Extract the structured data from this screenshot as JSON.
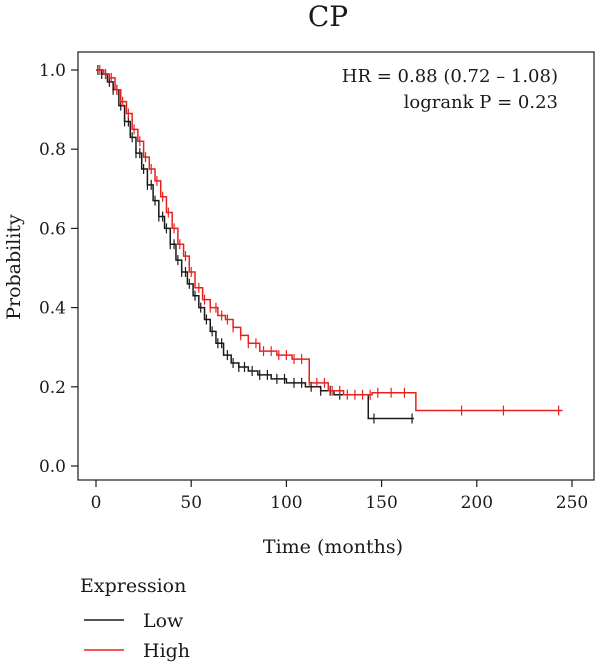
{
  "chart_data": {
    "type": "line",
    "subtype": "kaplan-meier",
    "title": "CP",
    "xlabel": "Time (months)",
    "ylabel": "Probability",
    "xlim": [
      0,
      250
    ],
    "ylim": [
      0,
      1.0
    ],
    "xticks": [
      0,
      50,
      100,
      150,
      200,
      250
    ],
    "yticks": [
      "0.0",
      "0.2",
      "0.4",
      "0.6",
      "0.8",
      "1.0"
    ],
    "grid": false,
    "annotations": {
      "hr": "HR = 0.88 (0.72 – 1.08)",
      "logrank": "logrank P = 0.23"
    },
    "legend": {
      "title": "Expression",
      "placement": "bottom-left",
      "entries": [
        {
          "label": "Low",
          "color": "#1a1a1a"
        },
        {
          "label": "High",
          "color": "#e8211f"
        }
      ]
    },
    "series": [
      {
        "name": "Low",
        "color": "#1a1a1a",
        "steps": [
          [
            0,
            1.0
          ],
          [
            3,
            0.99
          ],
          [
            6,
            0.97
          ],
          [
            9,
            0.95
          ],
          [
            12,
            0.91
          ],
          [
            15,
            0.87
          ],
          [
            18,
            0.83
          ],
          [
            21,
            0.79
          ],
          [
            24,
            0.75
          ],
          [
            27,
            0.71
          ],
          [
            30,
            0.67
          ],
          [
            33,
            0.63
          ],
          [
            36,
            0.6
          ],
          [
            39,
            0.56
          ],
          [
            42,
            0.52
          ],
          [
            45,
            0.49
          ],
          [
            48,
            0.46
          ],
          [
            51,
            0.43
          ],
          [
            54,
            0.4
          ],
          [
            57,
            0.37
          ],
          [
            60,
            0.34
          ],
          [
            63,
            0.31
          ],
          [
            67,
            0.28
          ],
          [
            71,
            0.26
          ],
          [
            75,
            0.25
          ],
          [
            80,
            0.24
          ],
          [
            85,
            0.23
          ],
          [
            92,
            0.22
          ],
          [
            100,
            0.21
          ],
          [
            110,
            0.2
          ],
          [
            118,
            0.19
          ],
          [
            125,
            0.18
          ],
          [
            143,
            0.12
          ],
          [
            167,
            0.12
          ]
        ],
        "censor": [
          1,
          3,
          5,
          7,
          9,
          11,
          13,
          15,
          17,
          19,
          21,
          23,
          25,
          27,
          29,
          31,
          33,
          35,
          37,
          39,
          41,
          43,
          45,
          47,
          49,
          52,
          55,
          58,
          61,
          64,
          66,
          69,
          72,
          75,
          78,
          82,
          86,
          90,
          95,
          99,
          104,
          108,
          113,
          118,
          123,
          128,
          146,
          166
        ]
      },
      {
        "name": "High",
        "color": "#e8211f",
        "steps": [
          [
            0,
            1.0
          ],
          [
            4,
            0.99
          ],
          [
            7,
            0.98
          ],
          [
            10,
            0.95
          ],
          [
            13,
            0.92
          ],
          [
            16,
            0.89
          ],
          [
            19,
            0.85
          ],
          [
            22,
            0.82
          ],
          [
            25,
            0.78
          ],
          [
            28,
            0.75
          ],
          [
            31,
            0.72
          ],
          [
            34,
            0.68
          ],
          [
            37,
            0.64
          ],
          [
            40,
            0.6
          ],
          [
            43,
            0.56
          ],
          [
            46,
            0.53
          ],
          [
            49,
            0.49
          ],
          [
            52,
            0.45
          ],
          [
            56,
            0.42
          ],
          [
            60,
            0.4
          ],
          [
            64,
            0.38
          ],
          [
            68,
            0.37
          ],
          [
            72,
            0.35
          ],
          [
            76,
            0.33
          ],
          [
            80,
            0.31
          ],
          [
            86,
            0.29
          ],
          [
            95,
            0.28
          ],
          [
            103,
            0.27
          ],
          [
            112,
            0.21
          ],
          [
            122,
            0.19
          ],
          [
            130,
            0.18
          ],
          [
            145,
            0.185
          ],
          [
            168,
            0.14
          ],
          [
            245,
            0.14
          ]
        ],
        "censor": [
          2,
          5,
          8,
          11,
          14,
          17,
          20,
          23,
          26,
          29,
          32,
          35,
          38,
          41,
          44,
          47,
          50,
          54,
          57,
          60,
          63,
          66,
          69,
          72,
          76,
          80,
          84,
          88,
          92,
          96,
          100,
          104,
          108,
          112,
          116,
          120,
          124,
          128,
          132,
          136,
          140,
          144,
          148,
          155,
          162,
          192,
          214,
          243
        ]
      }
    ]
  }
}
